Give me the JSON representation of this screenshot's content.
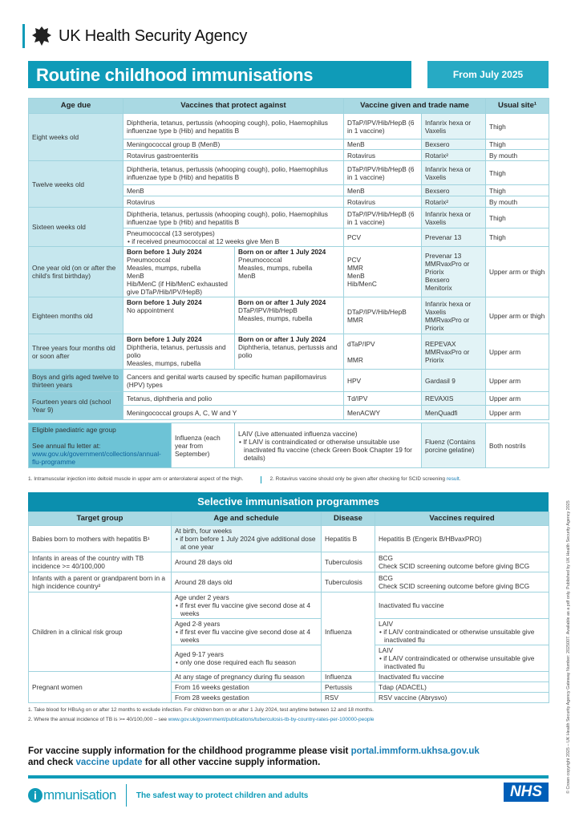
{
  "header": {
    "org": "UK Health Security Agency",
    "title": "Routine childhood immunisations",
    "date": "From July 2025"
  },
  "colors": {
    "brand_teal": "#0f9bb8",
    "header_teal": "#a9d9e3",
    "nhs_blue": "#005eb8",
    "link": "#1a7fb5"
  },
  "routine": {
    "headers": [
      "Age due",
      "Vaccines that protect against",
      "Vaccine given and trade name",
      "Usual site¹"
    ],
    "born_before": "Born before 1 July 2024",
    "born_after": "Born on or after 1 July 2024",
    "r": [
      {
        "age": "Eight weeks old",
        "rows": [
          [
            "Diphtheria, tetanus, pertussis (whooping cough), polio, Haemophilus influenzae type b (Hib) and hepatitis B",
            "DTaP/IPV/Hib/HepB (6 in 1 vaccine)",
            "Infanrix hexa or Vaxelis",
            "Thigh"
          ],
          [
            "Meningococcal group B (MenB)",
            "MenB",
            "Bexsero",
            "Thigh"
          ],
          [
            "Rotavirus gastroenteritis",
            "Rotavirus",
            "Rotarix²",
            "By mouth"
          ]
        ]
      },
      {
        "age": "Twelve weeks old",
        "rows": [
          [
            "Diphtheria, tetanus, pertussis (whooping cough), polio, Haemophilus influenzae type b (Hib) and hepatitis B",
            "DTaP/IPV/Hib/HepB (6 in 1 vaccine)",
            "Infanrix hexa or Vaxelis",
            "Thigh"
          ],
          [
            "MenB",
            "MenB",
            "Bexsero",
            "Thigh"
          ],
          [
            "Rotavirus",
            "Rotavirus",
            "Rotarix²",
            "By mouth"
          ]
        ]
      },
      {
        "age": "Sixteen weeks old",
        "rows": [
          [
            "Diphtheria, tetanus, pertussis (whooping cough), polio, Haemophilus influenzae type b (Hib) and hepatitis B",
            "DTaP/IPV/Hib/HepB (6 in 1 vaccine)",
            "Infanrix hexa or Vaxelis",
            "Thigh"
          ],
          [
            "Pneumococcal (13 serotypes)",
            "PCV",
            "Prevenar 13",
            "Thigh"
          ]
        ],
        "bullet": "if received pneumococcal at 12 weeks give Men B"
      },
      {
        "age": "One year old (on or after the child's first birthday)",
        "before": "Pneumococcal\nMeasles, mumps, rubella\nMenB\nHib/MenC (if Hib/MenC exhausted give DTaP/Hib/IPV/HepB)",
        "after": "Pneumococcal\nMeasles, mumps, rubella\nMenB",
        "given": "PCV\nMMR\nMenB\nHib/MenC",
        "trade": "Prevenar 13\nMMRvaxPro or Priorix\nBexsero\nMenitorix",
        "site": "Upper arm or thigh"
      },
      {
        "age": "Eighteen months old",
        "before": "No appointment",
        "after": "DTaP/IPV/Hib/HepB\nMeasles, mumps, rubella",
        "given": "DTaP/IPV/Hib/HepB\nMMR",
        "trade": "Infanrix hexa or Vaxelis\nMMRvaxPro or Priorix",
        "site": "Upper arm or thigh"
      },
      {
        "age": "Three years four months old or soon after",
        "before": "Diphtheria, tetanus, pertussis and polio\nMeasles, mumps, rubella",
        "after": "Diphtheria, tetanus, pertussis and polio",
        "given": "dTaP/IPV\n\nMMR",
        "trade": "REPEVAX\nMMRvaxPro or Priorix",
        "site": "Upper arm"
      },
      {
        "age": "Boys and girls aged twelve to thirteen years",
        "rows": [
          [
            "Cancers and genital warts caused by specific human papillomavirus (HPV) types",
            "HPV",
            "Gardasil 9",
            "Upper arm"
          ]
        ]
      },
      {
        "age": "Fourteen years old (school Year 9)",
        "rows": [
          [
            "Tetanus, diphtheria and polio",
            "Td/IPV",
            "REVAXIS",
            "Upper arm"
          ],
          [
            "Meningococcal groups A, C, W and Y",
            "MenACWY",
            "MenQuadfi",
            "Upper arm"
          ]
        ]
      }
    ]
  },
  "flu": {
    "group": "Eligible paediatric age group",
    "see": "See annual flu letter at:",
    "link": "www.gov.uk/government/collections/annual-flu-programme",
    "disease": "Influenza (each year from September)",
    "vaccine": "LAIV (Live attenuated influenza vaccine)",
    "bullet": "If LAIV is contraindicated or otherwise unsuitable use inactivated flu vaccine (check Green Book Chapter 19 for details)",
    "trade": "Fluenz (Contains porcine gelatine)",
    "site": "Both nostrils"
  },
  "footnotes1": {
    "a": "1. Intramuscular injection into deltoid muscle in upper arm or anterolateral aspect of the thigh.",
    "b": "2. Rotavirus vaccine should only be given after checking for SCID screening ",
    "b_link": "result",
    "b_end": "."
  },
  "selective": {
    "title": "Selective immunisation programmes",
    "headers": [
      "Target group",
      "Age and schedule",
      "Disease",
      "Vaccines required"
    ],
    "babies": {
      "group": "Babies born to mothers with hepatitis B¹",
      "age": "At birth, four weeks",
      "bullet": "if born before 1 July 2024 give additional dose at one year",
      "disease": "Hepatitis B",
      "vaccine": "Hepatitis B (Engerix B/HBvaxPRO)"
    },
    "tb1": {
      "group": "Infants in areas of the country with TB incidence >= 40/100,000",
      "age": "Around 28 days old",
      "disease": "Tuberculosis",
      "vaccine": "BCG",
      "note": "Check SCID screening outcome before giving BCG"
    },
    "tb2": {
      "group": "Infants with a parent or grandparent born in a high incidence country²",
      "age": "Around 28 days old",
      "disease": "Tuberculosis",
      "vaccine": "BCG",
      "note": "Check SCID screening outcome before giving BCG"
    },
    "risk": {
      "group": "Children in a clinical risk group",
      "disease": "Influenza",
      "rows": [
        {
          "age": "Age under 2 years",
          "bullet": "if first ever flu vaccine give second dose at 4 weeks",
          "vaccine": "Inactivated flu vaccine",
          "vbullet": ""
        },
        {
          "age": "Aged 2-8 years",
          "bullet": "if first ever flu vaccine give second dose at 4 weeks",
          "vaccine": "LAIV",
          "vbullet": "if LAIV contraindicated or otherwise unsuitable give inactivated flu"
        },
        {
          "age": "Aged 9-17 years",
          "bullet": "only one dose required each flu season",
          "vaccine": "LAIV",
          "vbullet": "if LAIV contraindicated or otherwise unsuitable give inactivated flu"
        }
      ]
    },
    "pregnant": {
      "group": "Pregnant women",
      "rows": [
        [
          "At any stage of pregnancy during flu season",
          "Influenza",
          "Inactivated flu vaccine"
        ],
        [
          "From 16 weeks gestation",
          "Pertussis",
          "Tdap (ADACEL)"
        ],
        [
          "From 28 weeks gestation",
          "RSV",
          "RSV vaccine (Abrysvo)"
        ]
      ]
    }
  },
  "footnotes2": {
    "a": "1. Take blood for HBsAg on or after 12 months to exclude infection. For children born on or after 1 July 2024, test anytime between 12 and 18 months.",
    "b": "2. Where the annual incidence of TB is >= 40/100,000 – see ",
    "b_link": "www.gov.uk/government/publications/tuberculosis-tb-by-country-rates-per-100000-people"
  },
  "supply": {
    "t1": "For vaccine supply information for the childhood programme please visit ",
    "link1": "portal.immform.ukhsa.gov.uk",
    "t2": "and check ",
    "link2": "vaccine update",
    "t3": " for all other vaccine supply information."
  },
  "footer": {
    "i": "i",
    "brand": "mmunisation",
    "tagline": "The safest way to protect children and adults",
    "nhs": "NHS"
  },
  "side": "© Crown copyright 2025 – UK Health Security Agency Gateway Number: 2025007. Available as a pdf only. Published by UK Health Security Agency 2025"
}
